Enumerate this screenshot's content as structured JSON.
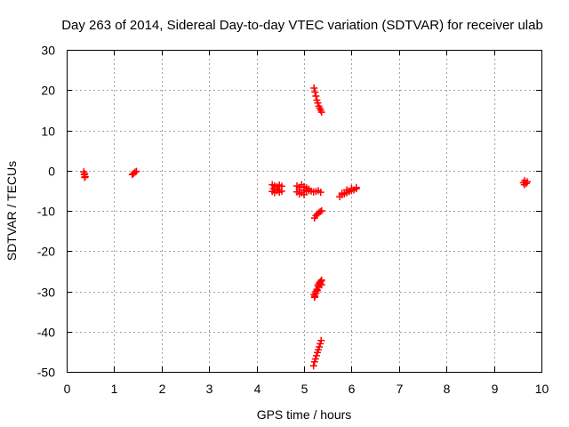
{
  "chart_data": {
    "type": "scatter",
    "title": "Day 263 of 2014, Sidereal Day-to-day VTEC variation (SDTVAR) for receiver ulab",
    "xlabel": "GPS time / hours",
    "ylabel": "SDTVAR / TECUs",
    "xlim": [
      0,
      10
    ],
    "ylim": [
      -50,
      30
    ],
    "xticks": [
      0,
      1,
      2,
      3,
      4,
      5,
      6,
      7,
      8,
      9,
      10
    ],
    "yticks": [
      30,
      20,
      10,
      0,
      -10,
      -20,
      -30,
      -40,
      -50
    ],
    "grid": true,
    "marker": "+",
    "series": [
      {
        "name": "SDTVAR",
        "color": "#ff0000",
        "x": [
          0.36,
          0.37,
          0.38,
          0.38,
          0.39,
          1.38,
          1.41,
          1.44,
          1.47,
          4.33,
          4.38,
          4.43,
          4.48,
          4.53,
          4.33,
          4.38,
          4.43,
          4.48,
          4.53,
          4.36,
          4.46,
          4.85,
          4.9,
          4.95,
          5.0,
          5.05,
          5.1,
          4.85,
          4.9,
          4.95,
          5.0,
          5.05,
          5.1,
          4.9,
          5.0,
          5.15,
          5.2,
          5.25,
          5.3,
          5.35,
          5.22,
          5.25,
          5.28,
          5.31,
          5.34,
          5.37,
          5.21,
          5.23,
          5.25,
          5.27,
          5.29,
          5.31,
          5.33,
          5.35,
          5.37,
          5.22,
          5.25,
          5.28,
          5.31,
          5.34,
          5.37,
          5.2,
          5.22,
          5.24,
          5.26,
          5.28,
          5.3,
          5.32,
          5.34,
          5.36,
          5.21,
          5.23,
          5.25,
          5.27,
          5.29,
          5.31,
          5.33,
          5.35,
          5.37,
          5.75,
          5.8,
          5.85,
          5.9,
          5.95,
          6.0,
          6.05,
          6.1,
          5.8,
          5.9,
          6.0,
          6.1,
          9.62,
          9.65,
          9.68,
          9.7,
          9.64
        ],
        "y": [
          -0.3,
          -1.0,
          -1.7,
          -0.8,
          -1.5,
          -1.0,
          -0.7,
          -0.4,
          -0.2,
          -3.5,
          -3.8,
          -4.0,
          -3.6,
          -3.9,
          -5.2,
          -5.5,
          -5.0,
          -5.4,
          -5.1,
          -4.5,
          -4.6,
          -3.8,
          -4.2,
          -3.5,
          -4.0,
          -4.3,
          -4.6,
          -5.3,
          -5.8,
          -5.5,
          -6.0,
          -5.2,
          -5.0,
          -4.8,
          -4.9,
          -5.1,
          -5.3,
          -5.2,
          -5.0,
          -5.4,
          -11.8,
          -11.2,
          -10.8,
          -10.5,
          -10.2,
          -10.0,
          20.5,
          19.5,
          18.5,
          17.5,
          16.8,
          16.0,
          15.5,
          15.0,
          14.5,
          -31.5,
          -30.5,
          -29.8,
          -29.0,
          -28.0,
          -27.2,
          -48.5,
          -47.5,
          -46.8,
          -46.0,
          -45.2,
          -44.5,
          -43.8,
          -43.0,
          -42.2,
          -30.8,
          -31.2,
          -30.0,
          -29.5,
          -28.6,
          -28.2,
          -27.8,
          -27.5,
          -28.4,
          -6.5,
          -6.0,
          -5.8,
          -5.5,
          -5.2,
          -5.0,
          -4.8,
          -4.5,
          -5.6,
          -4.8,
          -4.4,
          -4.2,
          -3.0,
          -2.5,
          -3.2,
          -2.8,
          -3.5
        ]
      }
    ]
  }
}
